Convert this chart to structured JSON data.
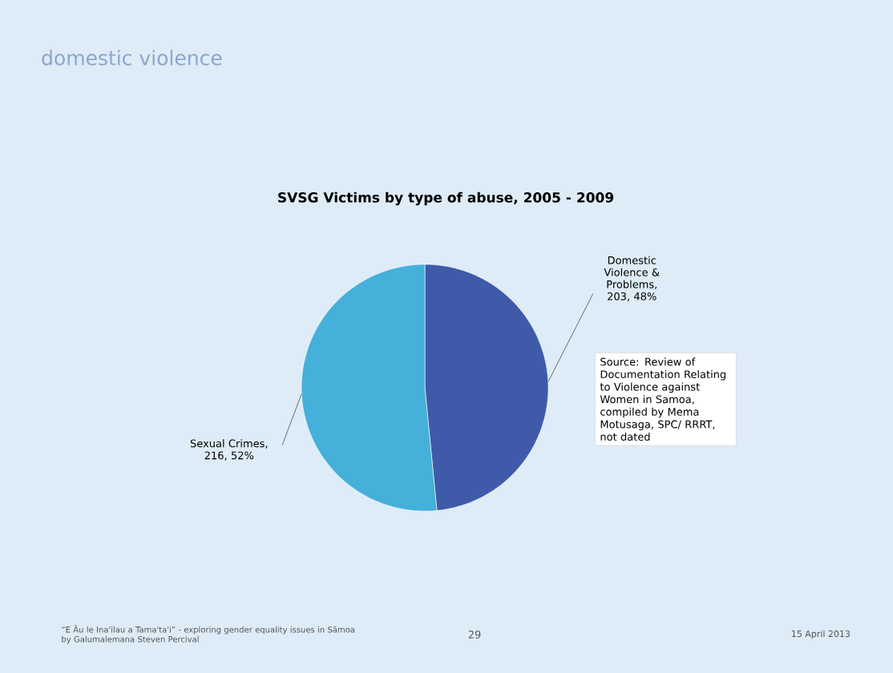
{
  "chart_data": {
    "type": "pie",
    "title": "SVSG Victims by type of abuse, 2005 - 2009",
    "categories": [
      "Domestic Violence & Problems",
      "Sexual Crimes"
    ],
    "values": [
      203,
      216
    ],
    "value_labels": [
      ", 203, 48%",
      ", 216, 52%"
    ],
    "colors": [
      "#3f5aa8",
      "#45b0d9"
    ],
    "annotations": [
      "domestic violence",
      "Source: Review of Documentation Relating to Violence against Women in Samoa, compiled by Mema Motusaga, SPC/ RRRT, not dated",
      "“E Āu le Ina'ilau a Tama'ta'i” - exploring gender equality issues in Sāmoa by Galumalemana Steven Percival",
      "29",
      "15 April 2013"
    ]
  }
}
